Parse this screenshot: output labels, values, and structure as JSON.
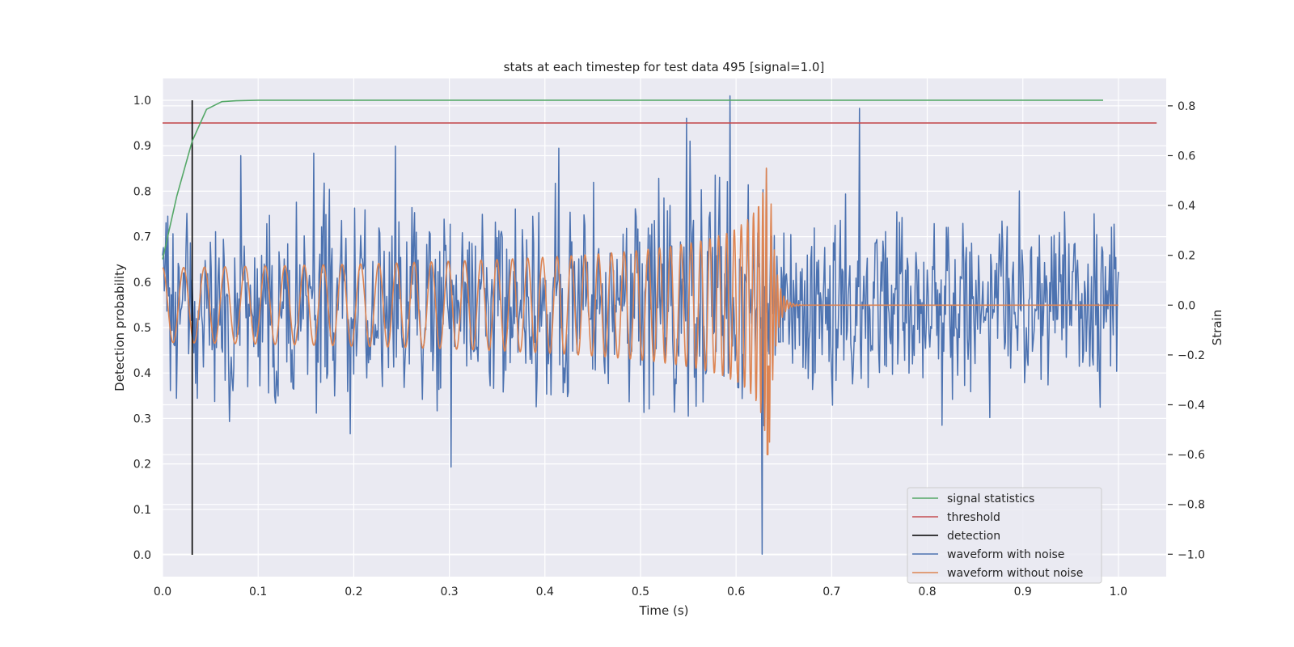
{
  "chart_data": {
    "type": "line",
    "title": "stats at each timestep for test data 495 [signal=1.0]",
    "xlabel": "Time (s)",
    "ylabel_left": "Detection probability",
    "ylabel_right": "Strain",
    "xlim": [
      0.0,
      1.05
    ],
    "ylim_left": [
      -0.048,
      1.048
    ],
    "ylim_right": [
      -1.09,
      0.91
    ],
    "xticks": [
      "0.0",
      "0.1",
      "0.2",
      "0.3",
      "0.4",
      "0.5",
      "0.6",
      "0.7",
      "0.8",
      "0.9",
      "1.0"
    ],
    "yticks_left": [
      "0.0",
      "0.1",
      "0.2",
      "0.3",
      "0.4",
      "0.5",
      "0.6",
      "0.7",
      "0.8",
      "0.9",
      "1.0"
    ],
    "yticks_right": [
      "−1.0",
      "−0.8",
      "−0.6",
      "−0.4",
      "−0.2",
      "0.0",
      "0.2",
      "0.4",
      "0.6",
      "0.8"
    ],
    "grid": true,
    "legend_position": "bottom-right",
    "colors": {
      "signal_statistics": "#55a868",
      "threshold": "#c44e52",
      "detection": "#000000",
      "waveform_noise": "#4c72b0",
      "waveform_clean": "#dd8452",
      "plot_background": "#eaeaf2",
      "grid": "#ffffff"
    },
    "series": [
      {
        "name": "signal statistics",
        "axis": "left",
        "x": [
          0.0,
          0.015,
          0.031,
          0.046,
          0.062,
          0.077,
          0.1,
          0.2,
          0.4,
          0.6,
          0.8,
          0.984
        ],
        "y": [
          0.65,
          0.79,
          0.91,
          0.98,
          0.997,
          0.999,
          1.0,
          1.0,
          1.0,
          1.0,
          1.0,
          1.0
        ]
      },
      {
        "name": "threshold",
        "axis": "left",
        "x": [
          0.0,
          1.04
        ],
        "y": [
          0.95,
          0.95
        ]
      },
      {
        "name": "detection",
        "axis": "left",
        "x": [
          0.031,
          0.031
        ],
        "y": [
          0.0,
          1.0
        ]
      },
      {
        "name": "waveform with noise",
        "axis": "right",
        "type": "noise",
        "x_range": [
          0.0,
          1.0
        ],
        "amplitude_std": 0.19,
        "extremes": [
          {
            "x": 0.082,
            "y": 0.6
          },
          {
            "x": 0.158,
            "y": 0.61
          },
          {
            "x": 0.302,
            "y": -0.65
          },
          {
            "x": 0.415,
            "y": 0.63
          },
          {
            "x": 0.548,
            "y": 0.75
          },
          {
            "x": 0.594,
            "y": 0.84
          },
          {
            "x": 0.627,
            "y": -1.0
          },
          {
            "x": 0.729,
            "y": 0.79
          },
          {
            "x": 0.981,
            "y": -0.41
          }
        ]
      },
      {
        "name": "waveform without noise",
        "axis": "right",
        "type": "chirp",
        "x_range": [
          0.0,
          1.0
        ],
        "merger_time": 0.635,
        "start_frequency_hz": 45,
        "start_amplitude": 0.15,
        "peak_amplitude": 0.55,
        "peak_min": -0.6,
        "ringdown_end": 0.665
      }
    ]
  }
}
